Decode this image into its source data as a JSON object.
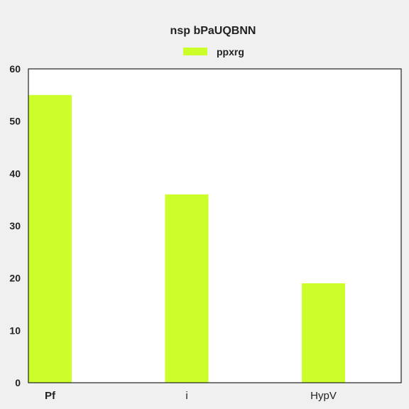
{
  "chart_data": {
    "type": "bar",
    "title": "nsp bPaUQBNN",
    "xlabel": "",
    "ylabel": "",
    "categories": [
      "Pf",
      "i",
      "HypV"
    ],
    "series": [
      {
        "name": "ppxrg",
        "values": [
          55,
          36,
          19
        ]
      }
    ],
    "ylim": [
      0,
      60
    ],
    "yticks": [
      0,
      10,
      20,
      30,
      40,
      50,
      60
    ],
    "grid": false,
    "legend_position": "top-center",
    "colors": {
      "bar": "#ccff2a",
      "axis": "#222222",
      "plot_background": "#ffffff",
      "page_background": "#f0f0f0"
    }
  }
}
